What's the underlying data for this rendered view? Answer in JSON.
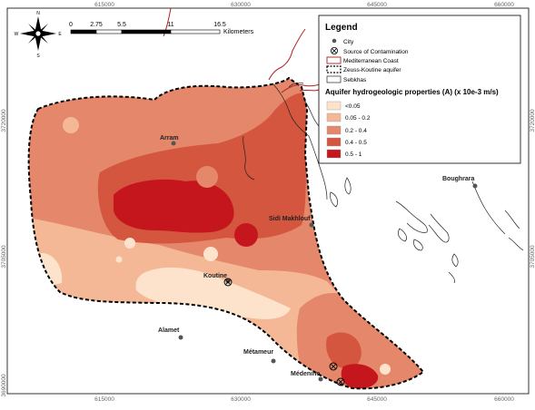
{
  "map": {
    "x_ticks": [
      "615000",
      "630000",
      "645000",
      "660000"
    ],
    "y_ticks": [
      "3720000",
      "3705000",
      "3690000"
    ],
    "north_arrow": {
      "n": "N",
      "s": "S",
      "e": "E",
      "w": "W"
    },
    "scale_bar": {
      "ticks": [
        "0",
        "2.75",
        "5.5",
        "11",
        "16.5"
      ],
      "unit": "Kilometers"
    },
    "cities": [
      {
        "name": "Arram"
      },
      {
        "name": "Sidi Makhlouf"
      },
      {
        "name": "Boughrara"
      },
      {
        "name": "Koutine"
      },
      {
        "name": "Alamet"
      },
      {
        "name": "Métameur"
      },
      {
        "name": "Médenine"
      }
    ],
    "legend": {
      "title": "Legend",
      "items": [
        {
          "label": "City"
        },
        {
          "label": "Source of Contamination"
        },
        {
          "label": "Mediterranean Coast"
        },
        {
          "label": "Zeuss-Koutine aquifer"
        },
        {
          "label": "Sebkhas"
        }
      ],
      "subtitle": "Aquifer hydrogeologic properties (A) (x 10e-3 m/s)",
      "classes": [
        {
          "label": "<0.05",
          "color": "#fde3cc"
        },
        {
          "label": "0.05 - 0.2",
          "color": "#f4b896"
        },
        {
          "label": "0.2 - 0.4",
          "color": "#e5876a"
        },
        {
          "label": "0.4 - 0.5",
          "color": "#d4563f"
        },
        {
          "label": "0.5 - 1",
          "color": "#c4161c"
        }
      ]
    }
  }
}
